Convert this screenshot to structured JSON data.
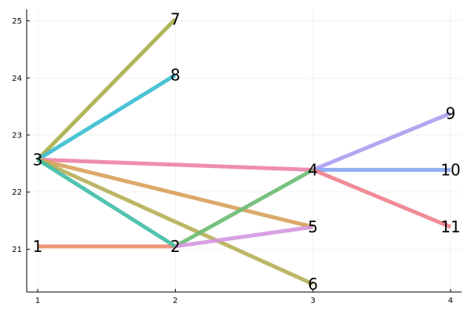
{
  "chart_data": {
    "type": "line",
    "title": "",
    "xlabel": "",
    "ylabel": "",
    "xlim": [
      0.92,
      4.08
    ],
    "ylim": [
      20.25,
      25.2
    ],
    "grid": true,
    "legend": "none",
    "x_ticks": [
      1,
      2,
      3,
      4
    ],
    "y_ticks": [
      21,
      22,
      23,
      24,
      25
    ],
    "nodes": [
      {
        "label": "1",
        "x": 1,
        "y": 21.05
      },
      {
        "label": "2",
        "x": 2,
        "y": 21.05
      },
      {
        "label": "3",
        "x": 1,
        "y": 22.57
      },
      {
        "label": "4",
        "x": 3,
        "y": 22.39
      },
      {
        "label": "5",
        "x": 3,
        "y": 21.39
      },
      {
        "label": "6",
        "x": 3,
        "y": 20.39
      },
      {
        "label": "7",
        "x": 2,
        "y": 25.03
      },
      {
        "label": "8",
        "x": 2,
        "y": 24.05
      },
      {
        "label": "9",
        "x": 4,
        "y": 23.38
      },
      {
        "label": "10",
        "x": 4,
        "y": 22.39
      },
      {
        "label": "11",
        "x": 4,
        "y": 21.39
      }
    ],
    "edges": [
      {
        "from": "1",
        "to": "2",
        "color": "#ee8c6f"
      },
      {
        "from": "3",
        "to": "7",
        "color": "#a8ad48"
      },
      {
        "from": "3",
        "to": "8",
        "color": "#38bcd0"
      },
      {
        "from": "3",
        "to": "4",
        "color": "#ec82a6"
      },
      {
        "from": "3",
        "to": "5",
        "color": "#d7a05a"
      },
      {
        "from": "3",
        "to": "6",
        "color": "#b6ae55"
      },
      {
        "from": "3",
        "to": "2",
        "color": "#3ebca6"
      },
      {
        "from": "2",
        "to": "4",
        "color": "#6cbb72"
      },
      {
        "from": "2",
        "to": "5",
        "color": "#d596e0"
      },
      {
        "from": "4",
        "to": "9",
        "color": "#a99ef0"
      },
      {
        "from": "4",
        "to": "10",
        "color": "#86a6f0"
      },
      {
        "from": "4",
        "to": "11",
        "color": "#ef7e8b"
      }
    ]
  }
}
